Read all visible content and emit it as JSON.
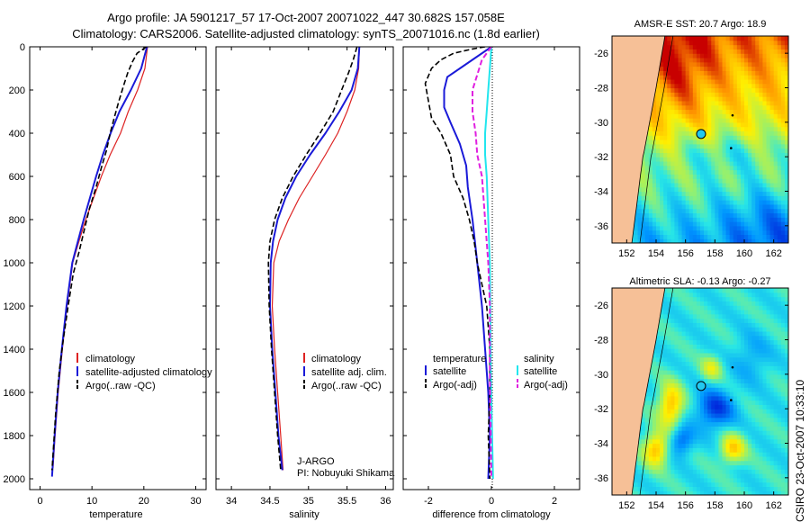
{
  "title": {
    "line1": "Argo profile: JA 5901217_57 17-Oct-2007 20071022_447 30.682S 157.058E",
    "line2": "Climatology: CARS2006. Satellite-adjusted climatology: synTS_20071016.nc (1.8d earlier)"
  },
  "credit": "CSIRO 23-Oct-2007 10:33:10",
  "colors": {
    "red": "#dd2222",
    "blue": "#1a1ad8",
    "black": "#000000",
    "cyan": "#22e6ee",
    "magenta": "#e020e0",
    "land": "#f6c097"
  },
  "chart_data": [
    {
      "type": "line",
      "name": "temperature",
      "xlabel": "temperature",
      "xlim": [
        -2,
        32
      ],
      "ylim": [
        0,
        2050
      ],
      "xticks": [
        0,
        10,
        20,
        30
      ],
      "yticks": [
        0,
        200,
        400,
        600,
        800,
        1000,
        1200,
        1400,
        1600,
        1800,
        2000
      ],
      "legend": [
        "climatology",
        "satellite-adjusted climatology",
        "Argo(..raw -QC)"
      ],
      "series": [
        {
          "name": "climatology",
          "color": "red",
          "width": 1.2,
          "points": [
            [
              20.7,
              0
            ],
            [
              20.2,
              100
            ],
            [
              18.8,
              200
            ],
            [
              17.0,
              300
            ],
            [
              15.5,
              400
            ],
            [
              13.5,
              500
            ],
            [
              11.8,
              600
            ],
            [
              10.3,
              700
            ],
            [
              8.8,
              800
            ],
            [
              7.5,
              900
            ],
            [
              6.3,
              1000
            ],
            [
              5.2,
              1200
            ],
            [
              4.3,
              1400
            ],
            [
              3.5,
              1600
            ],
            [
              2.9,
              1800
            ],
            [
              2.5,
              1950
            ]
          ]
        },
        {
          "name": "satellite-adjusted climatology",
          "color": "blue",
          "width": 2,
          "points": [
            [
              20.6,
              0
            ],
            [
              19.5,
              100
            ],
            [
              17.5,
              200
            ],
            [
              15.3,
              300
            ],
            [
              13.6,
              400
            ],
            [
              12.1,
              500
            ],
            [
              10.8,
              600
            ],
            [
              9.6,
              700
            ],
            [
              8.4,
              800
            ],
            [
              7.3,
              900
            ],
            [
              6.2,
              1000
            ],
            [
              5.1,
              1200
            ],
            [
              4.2,
              1400
            ],
            [
              3.4,
              1600
            ],
            [
              2.8,
              1800
            ],
            [
              2.3,
              1990
            ]
          ]
        },
        {
          "name": "Argo(..raw -QC)",
          "color": "black",
          "width": 1.6,
          "dash": "6,3",
          "points": [
            [
              20.5,
              0
            ],
            [
              18.7,
              30
            ],
            [
              17.8,
              70
            ],
            [
              16.9,
              120
            ],
            [
              16.1,
              180
            ],
            [
              15.2,
              250
            ],
            [
              14.4,
              320
            ],
            [
              13.5,
              400
            ],
            [
              12.8,
              480
            ],
            [
              11.8,
              560
            ],
            [
              10.8,
              650
            ],
            [
              9.5,
              750
            ],
            [
              8.5,
              850
            ],
            [
              7.5,
              950
            ],
            [
              6.4,
              1050
            ],
            [
              5.4,
              1200
            ],
            [
              4.5,
              1350
            ],
            [
              3.7,
              1500
            ],
            [
              3.0,
              1700
            ],
            [
              2.6,
              1850
            ],
            [
              2.3,
              1960
            ]
          ]
        }
      ]
    },
    {
      "type": "line",
      "name": "salinity",
      "xlabel": "salinity",
      "xlim": [
        33.8,
        36.1
      ],
      "ylim": [
        0,
        2050
      ],
      "xticks": [
        34,
        34.5,
        35,
        35.5,
        36
      ],
      "legend": [
        "climatology",
        "satellite adj. clim.",
        "Argo(..raw -QC)"
      ],
      "annotation": [
        "J-ARGO",
        "PI: Nobuyuki Shikama"
      ],
      "series": [
        {
          "name": "climatology",
          "color": "red",
          "width": 1.2,
          "points": [
            [
              35.66,
              0
            ],
            [
              35.65,
              100
            ],
            [
              35.6,
              200
            ],
            [
              35.5,
              300
            ],
            [
              35.38,
              400
            ],
            [
              35.22,
              500
            ],
            [
              35.05,
              600
            ],
            [
              34.88,
              700
            ],
            [
              34.74,
              800
            ],
            [
              34.62,
              900
            ],
            [
              34.55,
              1000
            ],
            [
              34.53,
              1200
            ],
            [
              34.56,
              1400
            ],
            [
              34.6,
              1600
            ],
            [
              34.64,
              1800
            ],
            [
              34.67,
              1960
            ]
          ]
        },
        {
          "name": "satellite adj. clim.",
          "color": "blue",
          "width": 2,
          "points": [
            [
              35.66,
              0
            ],
            [
              35.64,
              100
            ],
            [
              35.56,
              200
            ],
            [
              35.4,
              300
            ],
            [
              35.22,
              400
            ],
            [
              35.02,
              500
            ],
            [
              34.84,
              600
            ],
            [
              34.7,
              700
            ],
            [
              34.6,
              800
            ],
            [
              34.54,
              900
            ],
            [
              34.51,
              1000
            ],
            [
              34.5,
              1200
            ],
            [
              34.53,
              1400
            ],
            [
              34.57,
              1600
            ],
            [
              34.61,
              1800
            ],
            [
              34.66,
              1960
            ]
          ]
        },
        {
          "name": "Argo(..raw -QC)",
          "color": "black",
          "width": 1.6,
          "dash": "6,3",
          "points": [
            [
              35.63,
              0
            ],
            [
              35.58,
              60
            ],
            [
              35.52,
              120
            ],
            [
              35.43,
              200
            ],
            [
              35.32,
              300
            ],
            [
              35.15,
              400
            ],
            [
              34.97,
              500
            ],
            [
              34.8,
              600
            ],
            [
              34.66,
              700
            ],
            [
              34.56,
              800
            ],
            [
              34.5,
              900
            ],
            [
              34.48,
              1000
            ],
            [
              34.49,
              1200
            ],
            [
              34.52,
              1400
            ],
            [
              34.56,
              1600
            ],
            [
              34.6,
              1800
            ],
            [
              34.64,
              1960
            ]
          ]
        }
      ]
    },
    {
      "type": "line",
      "name": "difference",
      "xlabel": "difference from climatology",
      "xlim": [
        -2.8,
        2.8
      ],
      "ylim": [
        0,
        2050
      ],
      "xticks": [
        -2,
        0,
        2
      ],
      "legend": {
        "temperature_head": "temperature",
        "salinity_head": "salinity",
        "temperature": [
          "satellite",
          "Argo(-adj)"
        ],
        "salinity": [
          "satellite",
          "Argo(-adj)"
        ]
      },
      "series": [
        {
          "name": "temperature satellite",
          "color": "blue",
          "width": 2,
          "points": [
            [
              0,
              0
            ],
            [
              -0.5,
              50
            ],
            [
              -1.0,
              100
            ],
            [
              -1.4,
              140
            ],
            [
              -1.5,
              200
            ],
            [
              -1.5,
              280
            ],
            [
              -1.3,
              350
            ],
            [
              -1.0,
              450
            ],
            [
              -0.8,
              550
            ],
            [
              -0.75,
              650
            ],
            [
              -0.6,
              800
            ],
            [
              -0.45,
              1000
            ],
            [
              -0.3,
              1200
            ],
            [
              -0.2,
              1400
            ],
            [
              -0.1,
              1600
            ],
            [
              -0.05,
              1800
            ],
            [
              -0.1,
              2000
            ]
          ]
        },
        {
          "name": "temperature Argo(-adj)",
          "color": "black",
          "width": 1.6,
          "dash": "6,3",
          "points": [
            [
              -0.2,
              0
            ],
            [
              -0.6,
              10
            ],
            [
              -1.2,
              30
            ],
            [
              -1.6,
              60
            ],
            [
              -1.9,
              100
            ],
            [
              -2.1,
              170
            ],
            [
              -2.0,
              250
            ],
            [
              -1.9,
              330
            ],
            [
              -1.6,
              400
            ],
            [
              -1.3,
              500
            ],
            [
              -1.2,
              600
            ],
            [
              -0.9,
              700
            ],
            [
              -0.7,
              800
            ],
            [
              -0.55,
              900
            ],
            [
              -0.45,
              1000
            ],
            [
              -0.3,
              1100
            ],
            [
              -0.15,
              1200
            ],
            [
              -0.05,
              1400
            ],
            [
              -0.05,
              1600
            ],
            [
              -0.1,
              1800
            ],
            [
              -0.05,
              2000
            ]
          ]
        },
        {
          "name": "salinity satellite",
          "color": "cyan",
          "width": 2,
          "points": [
            [
              0,
              0
            ],
            [
              -0.05,
              100
            ],
            [
              -0.1,
              200
            ],
            [
              -0.15,
              300
            ],
            [
              -0.2,
              400
            ],
            [
              -0.2,
              500
            ],
            [
              -0.15,
              600
            ],
            [
              -0.1,
              800
            ],
            [
              -0.05,
              1000
            ],
            [
              -0.02,
              1500
            ],
            [
              0.05,
              2000
            ]
          ]
        },
        {
          "name": "salinity Argo(-adj)",
          "color": "magenta",
          "width": 2,
          "dash": "6,3",
          "points": [
            [
              0,
              0
            ],
            [
              -0.3,
              60
            ],
            [
              -0.6,
              200
            ],
            [
              -0.6,
              300
            ],
            [
              -0.5,
              400
            ],
            [
              -0.45,
              500
            ],
            [
              -0.3,
              600
            ],
            [
              -0.2,
              800
            ],
            [
              -0.1,
              1000
            ],
            [
              -0.05,
              1200
            ],
            [
              -0.05,
              1500
            ],
            [
              0,
              2000
            ]
          ]
        }
      ]
    },
    {
      "type": "heatmap",
      "name": "sst_map",
      "title": "AMSR-E SST: 20.7 Argo: 18.9",
      "lonlim": [
        151,
        163
      ],
      "latlim": [
        -37,
        -25
      ],
      "xticks": [
        152,
        154,
        156,
        158,
        160,
        162
      ],
      "yticks": [
        -26,
        -28,
        -30,
        -32,
        -34,
        -36
      ],
      "marker": [
        157.06,
        -30.68
      ]
    },
    {
      "type": "heatmap",
      "name": "sla_map",
      "title": "Altimetric SLA: -0.13 Argo: -0.27",
      "lonlim": [
        151,
        163
      ],
      "latlim": [
        -37,
        -25
      ],
      "xticks": [
        152,
        154,
        156,
        158,
        160,
        162
      ],
      "yticks": [
        -26,
        -28,
        -30,
        -32,
        -34,
        -36
      ],
      "marker": [
        157.06,
        -30.68
      ]
    }
  ]
}
